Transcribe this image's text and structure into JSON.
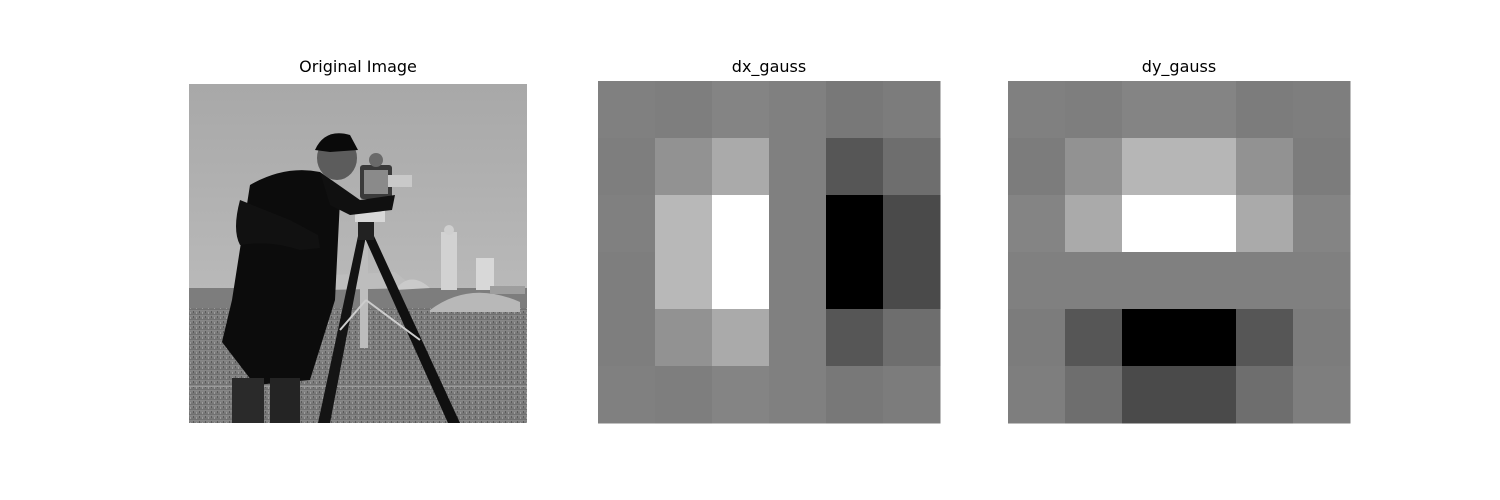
{
  "chart_data": [
    {
      "type": "image",
      "title": "Original Image",
      "subject": "photograph of a person in a dark coat operating a camera on a tripod, grass field and buildings in background",
      "colormap": "gray"
    },
    {
      "type": "heatmap",
      "title": "dx_gauss",
      "colormap": "gray",
      "rows": 6,
      "cols": 6,
      "values": [
        [
          128,
          126,
          132,
          128,
          120,
          124
        ],
        [
          126,
          146,
          170,
          128,
          86,
          110
        ],
        [
          128,
          184,
          255,
          128,
          0,
          74
        ],
        [
          126,
          184,
          255,
          128,
          0,
          74
        ],
        [
          126,
          146,
          170,
          128,
          86,
          110
        ],
        [
          128,
          126,
          132,
          128,
          120,
          124
        ]
      ]
    },
    {
      "type": "heatmap",
      "title": "dy_gauss",
      "colormap": "gray",
      "rows": 6,
      "cols": 6,
      "values": [
        [
          128,
          126,
          132,
          132,
          124,
          126
        ],
        [
          124,
          146,
          182,
          182,
          146,
          124
        ],
        [
          132,
          170,
          255,
          255,
          170,
          132
        ],
        [
          128,
          128,
          128,
          128,
          128,
          128
        ],
        [
          124,
          86,
          0,
          0,
          86,
          124
        ],
        [
          126,
          110,
          74,
          74,
          110,
          126
        ]
      ]
    }
  ]
}
